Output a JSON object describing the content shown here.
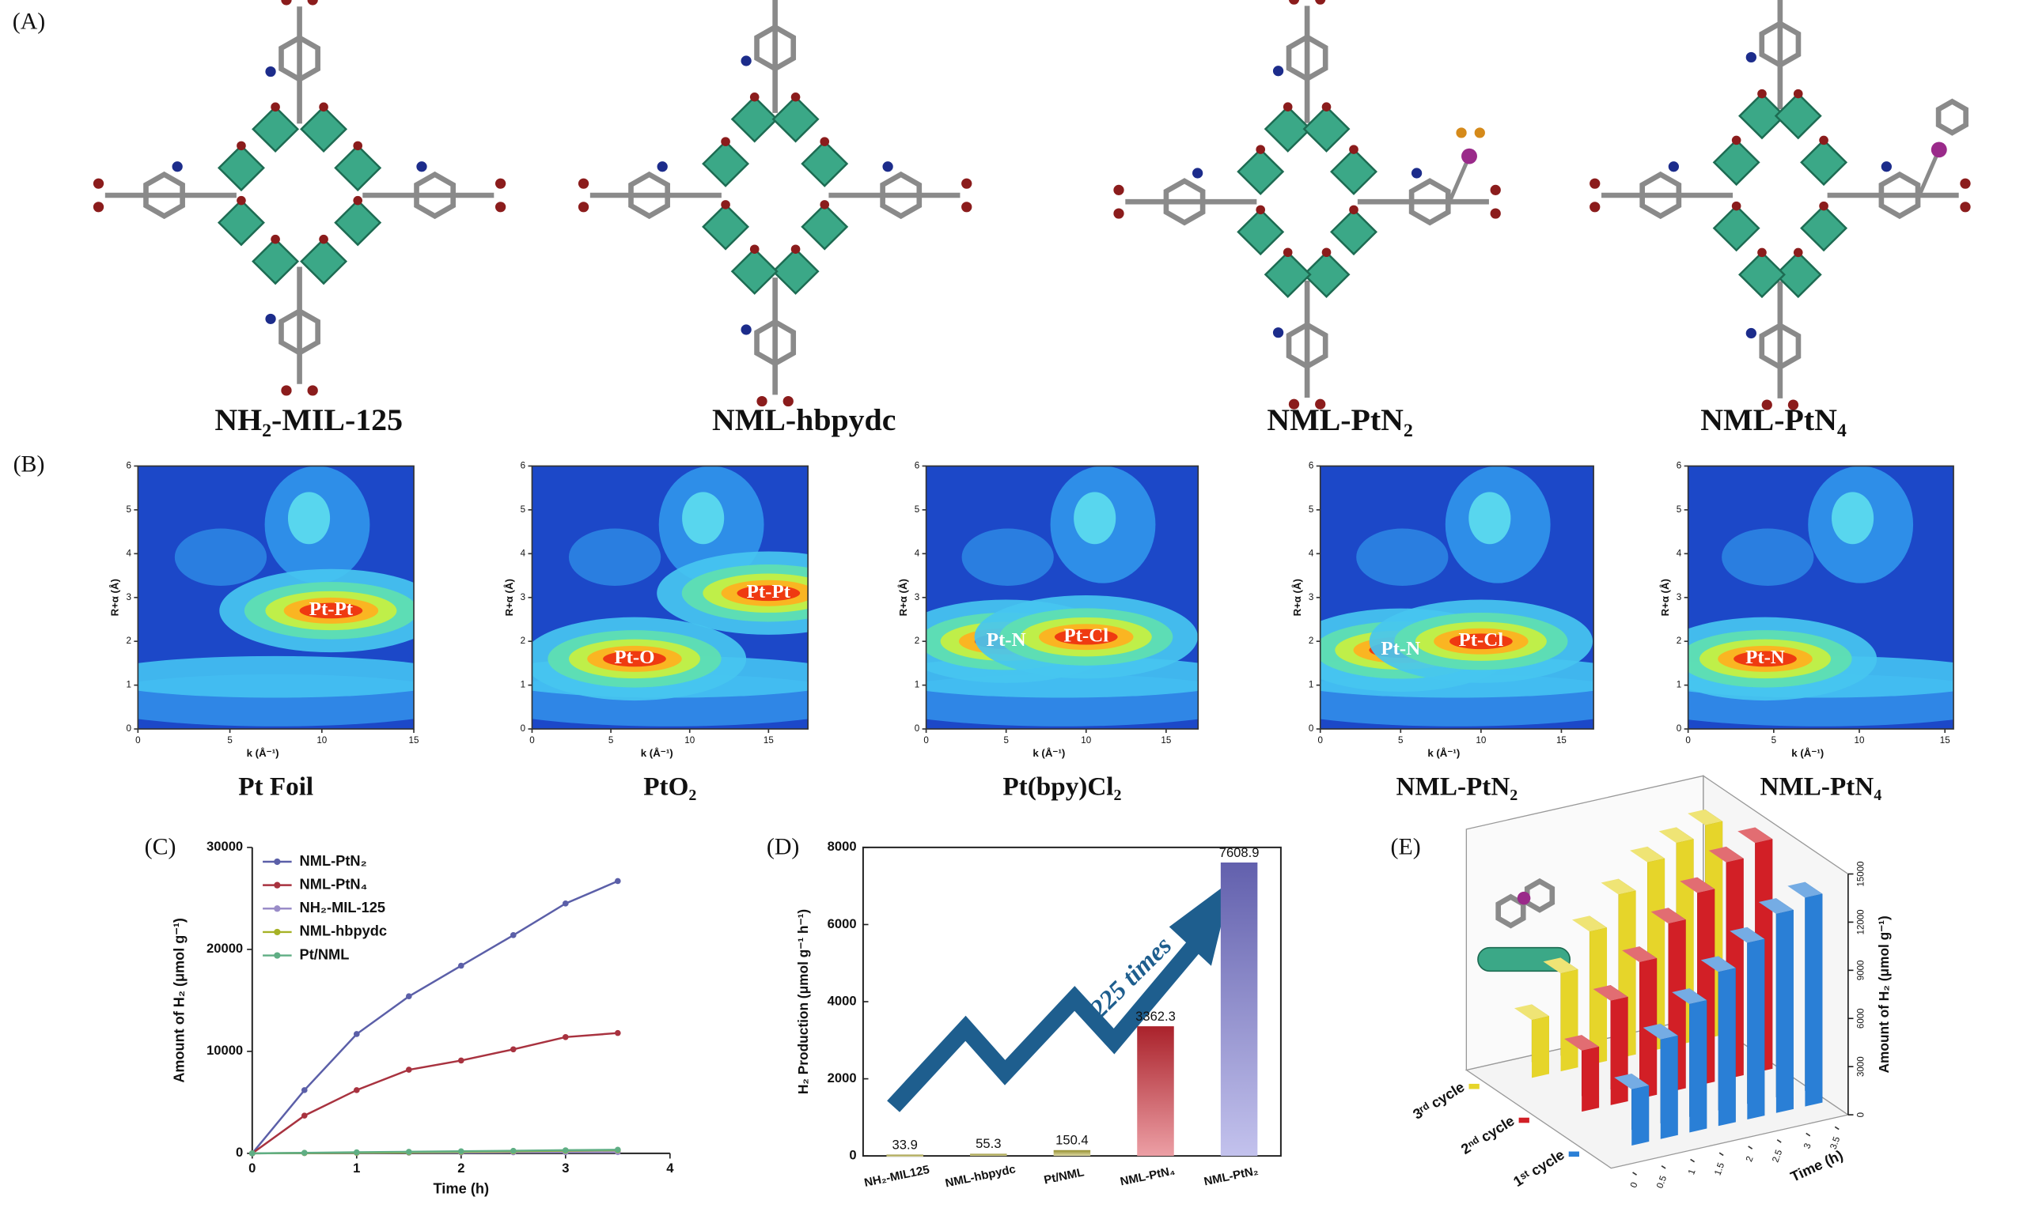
{
  "panel_labels": [
    "(A)",
    "(B)",
    "(C)",
    "(D)",
    "(E)"
  ],
  "structures": [
    "NH₂-MIL-125",
    "NML-hbpydc",
    "NML-PtN₂",
    "NML-PtN₄"
  ],
  "chart_data": [
    {
      "type": "wavelet",
      "title": "Pt Foil",
      "xlabel": "k (Å⁻¹)",
      "ylabel": "R+α (Å)",
      "xlim": [
        0,
        15
      ],
      "xticks": [
        0,
        5,
        10,
        15
      ],
      "ylim": [
        0,
        6
      ],
      "yticks": [
        0,
        1,
        2,
        3,
        4,
        5,
        6
      ],
      "peaks": [
        {
          "label": "Pt-Pt",
          "k": 10.5,
          "r": 2.7
        }
      ]
    },
    {
      "type": "wavelet",
      "title": "PtO₂",
      "xlabel": "k (Å⁻¹)",
      "ylabel": "R+α (Å)",
      "xlim": [
        0,
        17.5
      ],
      "xticks": [
        0,
        5,
        10,
        15
      ],
      "ylim": [
        0,
        6
      ],
      "yticks": [
        0,
        1,
        2,
        3,
        4,
        5,
        6
      ],
      "peaks": [
        {
          "label": "Pt-O",
          "k": 6.5,
          "r": 1.6
        },
        {
          "label": "Pt-Pt",
          "k": 15,
          "r": 3.1
        }
      ]
    },
    {
      "type": "wavelet",
      "title": "Pt(bpy)Cl₂",
      "xlabel": "k (Å⁻¹)",
      "ylabel": "R+α (Å)",
      "xlim": [
        0,
        17
      ],
      "xticks": [
        0,
        5,
        10,
        15
      ],
      "ylim": [
        0,
        6
      ],
      "yticks": [
        0,
        1,
        2,
        3,
        4,
        5,
        6
      ],
      "peaks": [
        {
          "label": "Pt-N",
          "k": 5,
          "r": 2.0
        },
        {
          "label": "Pt-Cl",
          "k": 10,
          "r": 2.1
        }
      ]
    },
    {
      "type": "wavelet",
      "title": "NML-PtN₂",
      "xlabel": "k (Å⁻¹)",
      "ylabel": "R+α (Å)",
      "xlim": [
        0,
        17
      ],
      "xticks": [
        0,
        5,
        10,
        15
      ],
      "ylim": [
        0,
        6
      ],
      "yticks": [
        0,
        1,
        2,
        3,
        4,
        5,
        6
      ],
      "peaks": [
        {
          "label": "Pt-N",
          "k": 5,
          "r": 1.8
        },
        {
          "label": "Pt-Cl",
          "k": 10,
          "r": 2.0
        }
      ]
    },
    {
      "type": "wavelet",
      "title": "NML-PtN₄",
      "xlabel": "k (Å⁻¹)",
      "ylabel": "R+α (Å)",
      "xlim": [
        0,
        15.5
      ],
      "xticks": [
        0,
        5,
        10,
        15
      ],
      "ylim": [
        0,
        6
      ],
      "yticks": [
        0,
        1,
        2,
        3,
        4,
        5,
        6
      ],
      "peaks": [
        {
          "label": "Pt-N",
          "k": 4.5,
          "r": 1.6
        }
      ]
    },
    {
      "type": "line",
      "xlabel": "Time (h)",
      "ylabel": "Amount of H₂ (μmol g⁻¹)",
      "x": [
        0,
        0.5,
        1,
        1.5,
        2,
        2.5,
        3,
        3.5
      ],
      "xlim": [
        0,
        4
      ],
      "xticks": [
        0,
        1,
        2,
        3,
        4
      ],
      "ylim": [
        0,
        30000
      ],
      "yticks": [
        0,
        10000,
        20000,
        30000
      ],
      "series": [
        {
          "name": "NML-PtN₂",
          "color": "#5b5fa8",
          "values": [
            0,
            6200,
            11700,
            15400,
            18400,
            21400,
            24500,
            26700
          ]
        },
        {
          "name": "NML-PtN₄",
          "color": "#a8323f",
          "values": [
            0,
            3700,
            6200,
            8200,
            9100,
            10200,
            11400,
            11800
          ]
        },
        {
          "name": "NH₂-MIL-125",
          "color": "#9a8cc8",
          "values": [
            0,
            20,
            40,
            60,
            80,
            100,
            110,
            120
          ]
        },
        {
          "name": "NML-hbpydc",
          "color": "#a6b226",
          "values": [
            0,
            30,
            60,
            100,
            150,
            200,
            250,
            300
          ]
        },
        {
          "name": "Pt/NML",
          "color": "#5fae84",
          "values": [
            0,
            50,
            100,
            150,
            200,
            250,
            300,
            350
          ]
        }
      ]
    },
    {
      "type": "bar",
      "ylabel": "H₂ Production (μmol g⁻¹ h⁻¹)",
      "annotation": "225 times",
      "categories": [
        "NH₂-MIL125",
        "NML-hbpydc",
        "Pt/NML",
        "NML-PtN₄",
        "NML-PtN₂"
      ],
      "values": [
        33.9,
        55.3,
        150.4,
        3362.3,
        7608.9
      ],
      "colors": [
        "#b9b23a",
        "#b9b23a",
        "#b9b23a",
        "#d42a36",
        "#7a78d8"
      ],
      "ylim": [
        0,
        8000
      ],
      "yticks": [
        0,
        2000,
        4000,
        6000,
        8000
      ]
    },
    {
      "type": "bar3d",
      "xlabel": "Time (h)",
      "ylabel": "Amount of H₂ (μmol g⁻¹)",
      "x": [
        0.5,
        1,
        1.5,
        2,
        2.5,
        3,
        3.5
      ],
      "xticks": [
        0,
        0.5,
        1,
        1.5,
        2,
        2.5,
        3,
        3.5
      ],
      "ylim": [
        0,
        15000
      ],
      "yticks": [
        0,
        3000,
        6000,
        9000,
        12000,
        15000
      ],
      "series": [
        {
          "name": "1ˢᵗ cycle",
          "color": "#2a7fd6",
          "values": [
            3500,
            6200,
            8000,
            9600,
            11000,
            12400,
            13000
          ]
        },
        {
          "name": "2ⁿᵈ cycle",
          "color": "#d21f26",
          "values": [
            3800,
            6500,
            8500,
            10500,
            12000,
            13500,
            14300
          ]
        },
        {
          "name": "3ʳᵈ cycle",
          "color": "#e6d52a",
          "values": [
            3600,
            6100,
            8300,
            10200,
            11800,
            12600,
            13300
          ]
        }
      ]
    }
  ]
}
